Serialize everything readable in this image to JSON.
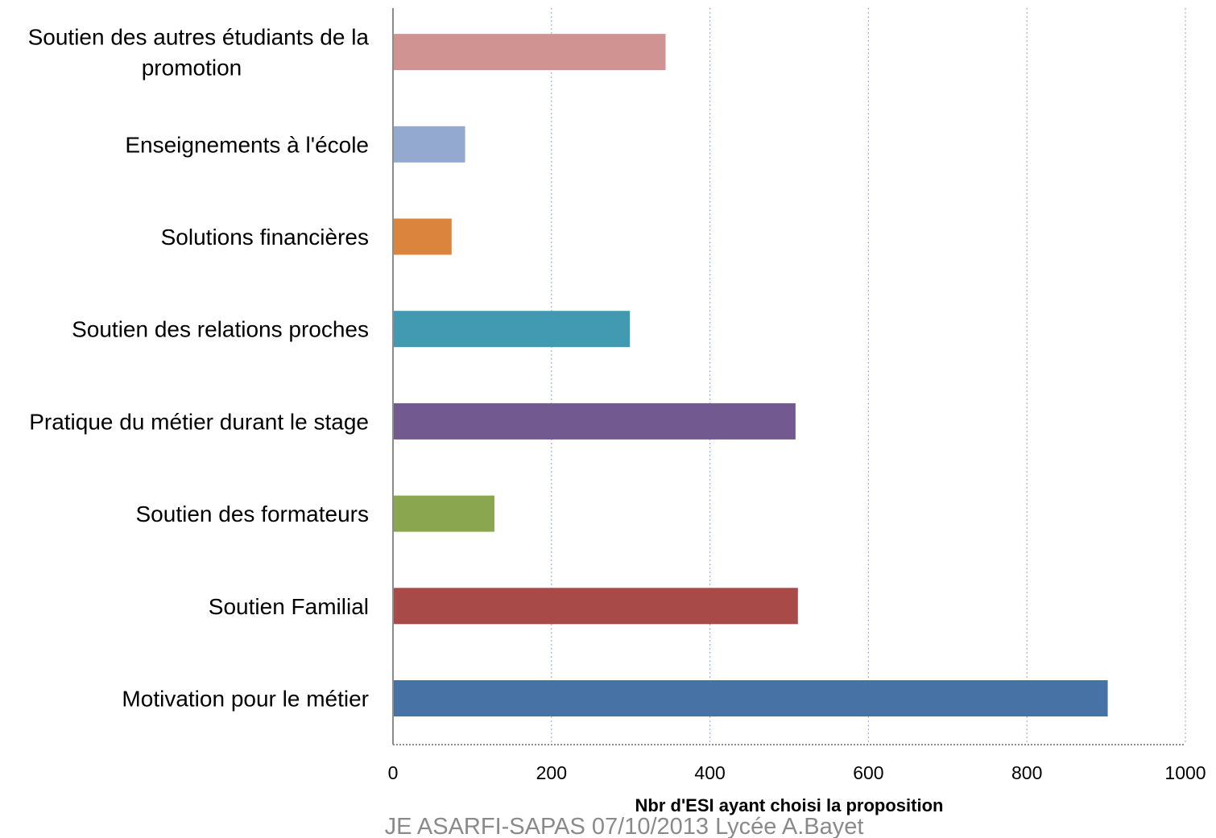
{
  "chart_data": {
    "type": "bar",
    "orientation": "horizontal",
    "categories": [
      "Motivation pour le métier",
      "Soutien Familial",
      "Soutien des formateurs",
      "Pratique du métier durant le stage",
      "Soutien des relations proches",
      "Solutions financières",
      "Enseignements à l'école",
      "Soutien des autres étudiants de la promotion"
    ],
    "category_label_lines": [
      [
        "Motivation pour le métier"
      ],
      [
        "Soutien Familial"
      ],
      [
        "Soutien des formateurs"
      ],
      [
        "Pratique du métier durant le stage"
      ],
      [
        "Soutien des relations proches"
      ],
      [
        "Solutions financières"
      ],
      [
        "Enseignements à l'école"
      ],
      [
        "Soutien des autres étudiants de la",
        "promotion"
      ]
    ],
    "values": [
      902,
      511,
      128,
      508,
      299,
      74,
      91,
      344
    ],
    "colors": [
      "#4672a6",
      "#a84a48",
      "#8aa74f",
      "#725990",
      "#4299b2",
      "#db843d",
      "#93a9d0",
      "#d19392"
    ],
    "xlim": [
      0,
      1000
    ],
    "x_ticks": [
      0,
      200,
      400,
      600,
      800,
      1000
    ],
    "x_tick_labels": [
      "0",
      "200",
      "400",
      "600",
      "800",
      "1000"
    ],
    "xlabel": "Nbr d'ESI ayant choisi la proposition",
    "title": "",
    "ylabel": "",
    "grid": "vertical dotted",
    "legend": "none"
  },
  "footer": {
    "text": "JE ASARFI-SAPAS 07/10/2013 Lycée A.Bayet"
  }
}
